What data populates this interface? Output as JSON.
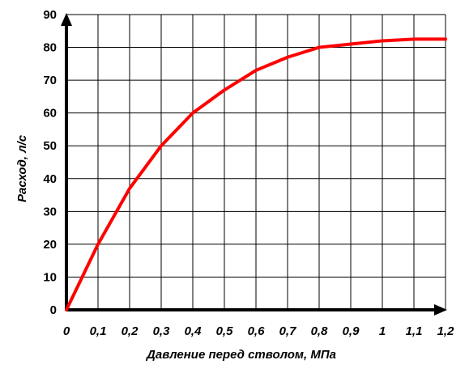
{
  "chart_data": {
    "type": "line",
    "title": "",
    "xlabel": "Давление перед стволом, МПа",
    "ylabel": "Расход, л/с",
    "xlim": [
      0,
      1.2
    ],
    "ylim": [
      0,
      90
    ],
    "x_ticks": [
      0,
      0.1,
      0.2,
      0.3,
      0.4,
      0.5,
      0.6,
      0.7,
      0.8,
      0.9,
      1.0,
      1.1,
      1.2
    ],
    "x_tick_labels": [
      "0",
      "0,1",
      "0,2",
      "0,3",
      "0,4",
      "0,5",
      "0,6",
      "0,7",
      "0,8",
      "0,9",
      "1",
      "1,1",
      "1,2"
    ],
    "y_ticks": [
      0,
      10,
      20,
      30,
      40,
      50,
      60,
      70,
      80,
      90
    ],
    "y_tick_labels": [
      "0",
      "10",
      "20",
      "30",
      "40",
      "50",
      "60",
      "70",
      "80",
      "90"
    ],
    "grid": true,
    "series": [
      {
        "color": "#ff0000",
        "x": [
          0,
          0.1,
          0.2,
          0.3,
          0.4,
          0.5,
          0.6,
          0.7,
          0.8,
          0.9,
          1.0,
          1.1,
          1.2
        ],
        "y": [
          0,
          20,
          37,
          50,
          60,
          67,
          73,
          77,
          80,
          81,
          82,
          82.5,
          82.5
        ]
      }
    ]
  }
}
